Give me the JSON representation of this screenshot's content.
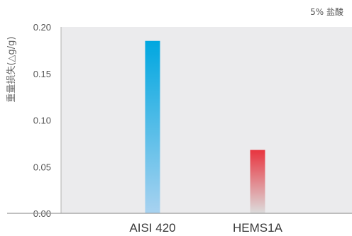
{
  "chart_data": {
    "type": "bar",
    "corner_note": "5% 盐酸",
    "ylabel": "重量损失(△g/g)",
    "xlabel": "",
    "categories": [
      "AISI 420",
      "HEMS1A"
    ],
    "values": [
      0.185,
      0.068
    ],
    "ylim": [
      0,
      0.2
    ],
    "yticks": [
      0.0,
      0.05,
      0.1,
      0.15,
      0.2
    ],
    "ytick_labels": [
      "0.00",
      "0.05",
      "0.10",
      "0.15",
      "0.20"
    ],
    "grid": false,
    "legend": "none",
    "plot_background": "#ebebed",
    "bar_gradients": [
      {
        "top": "#00a7e0",
        "bottom": "#a8d2f0"
      },
      {
        "top": "#e8343f",
        "bottom": "#dcdcdc"
      }
    ]
  }
}
